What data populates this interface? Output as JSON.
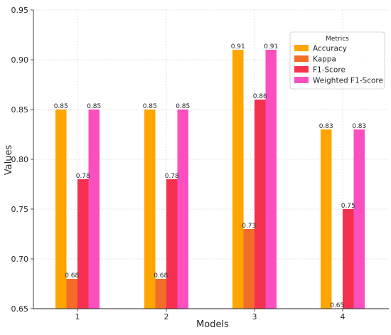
{
  "chart_data": {
    "type": "bar",
    "title": "",
    "xlabel": "Models",
    "ylabel": "Values",
    "categories": [
      "1",
      "2",
      "3",
      "4"
    ],
    "ylim": [
      0.65,
      0.95
    ],
    "yticks": [
      0.65,
      0.7,
      0.75,
      0.8,
      0.85,
      0.9,
      0.95
    ],
    "ytick_labels": [
      "0.65",
      "0.70",
      "0.75",
      "0.80",
      "0.85",
      "0.90",
      "0.95"
    ],
    "grid": true,
    "legend": {
      "title": "Metrics",
      "placement": "top-right"
    },
    "series": [
      {
        "name": "Accuracy",
        "color": "#FFA500",
        "values": [
          0.85,
          0.85,
          0.91,
          0.83
        ],
        "labels": [
          "0.85",
          "0.85",
          "0.91",
          "0.83"
        ]
      },
      {
        "name": "Kappa",
        "color": "#F36C2A",
        "values": [
          0.68,
          0.68,
          0.73,
          0.65
        ],
        "labels": [
          "0.68",
          "0.68",
          "0.73",
          "0.65"
        ]
      },
      {
        "name": "F1-Score",
        "color": "#F5314F",
        "values": [
          0.78,
          0.78,
          0.86,
          0.75
        ],
        "labels": [
          "0.78",
          "0.78",
          "0.86",
          "0.75"
        ]
      },
      {
        "name": "Weighted F1-Score",
        "color": "#FB4FBF",
        "values": [
          0.85,
          0.85,
          0.91,
          0.83
        ],
        "labels": [
          "0.85",
          "0.85",
          "0.91",
          "0.83"
        ]
      }
    ]
  }
}
